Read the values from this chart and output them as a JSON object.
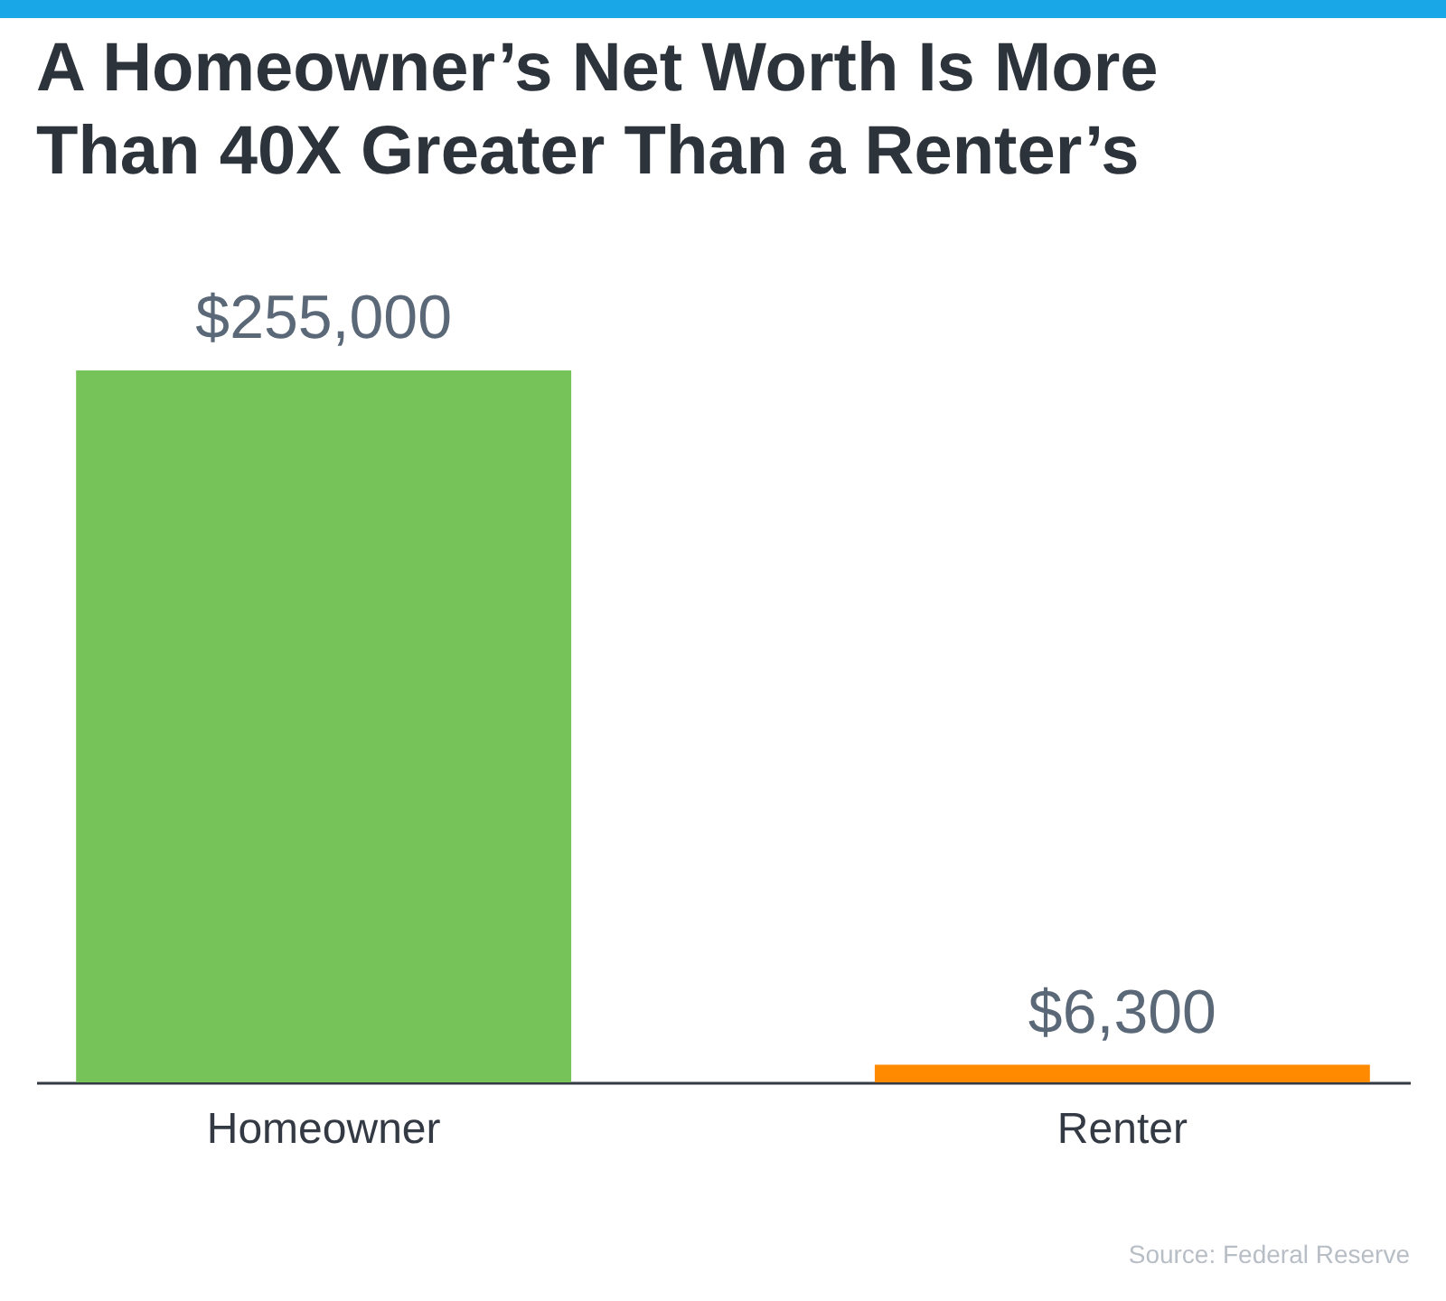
{
  "chart_data": {
    "type": "bar",
    "title": "A Homeowner’s Net Worth Is More Than 40X Greater Than a Renter’s",
    "categories": [
      "Homeowner",
      "Renter"
    ],
    "values": [
      255000,
      6300
    ],
    "colors": [
      "#76c359",
      "#ff8a00"
    ],
    "value_labels": [
      "$255,000",
      "$6,300"
    ],
    "annotations": [
      "Source: Federal Reserve"
    ]
  }
}
